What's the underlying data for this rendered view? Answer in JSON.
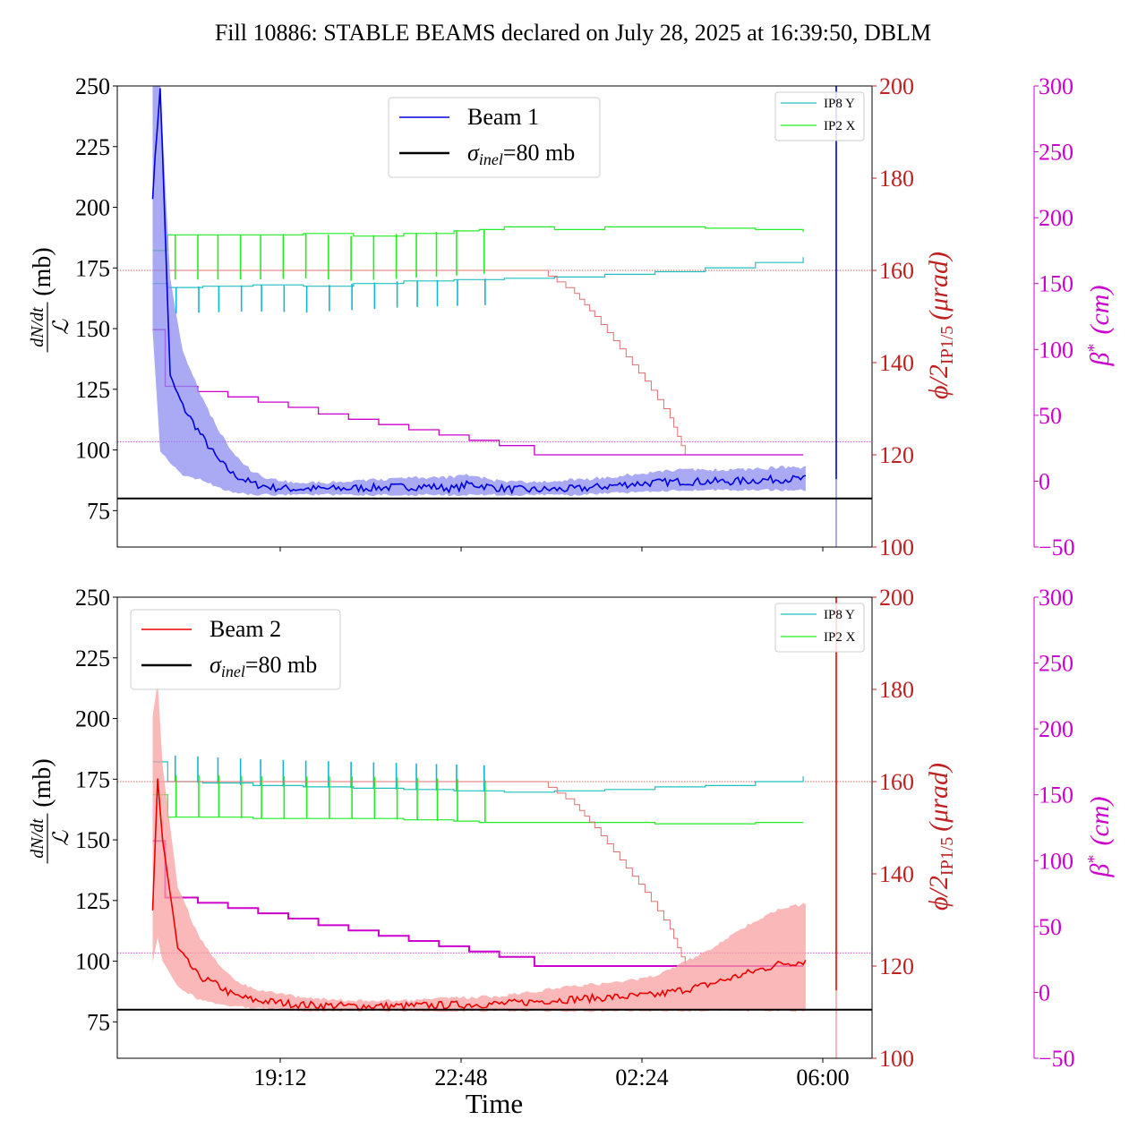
{
  "title": "Fill 10886: STABLE BEAMS declared on July 28, 2025 at 16:39:50, DBLM",
  "xlabel": "Time",
  "xticks": [
    "19:12",
    "22:48",
    "02:24",
    "06:00"
  ],
  "colors": {
    "beam1": "#0000dd",
    "beam1_band": "#8c8cf0",
    "beam2": "#ee0000",
    "beam2_band": "#f8a0a0",
    "ip8y": "#20c0c0",
    "ip2x": "#22ee22",
    "crossing": "#e07070",
    "beta": "#cc00cc",
    "axis_red": "#c02020",
    "axis_magenta": "#cc00cc"
  },
  "left_axis": {
    "label_fraction_top": "dN/dt",
    "label_fraction_bottom": "ℒ",
    "label_unit": "(mb)",
    "range": [
      60,
      250
    ],
    "ticks": [
      "75",
      "100",
      "125",
      "150",
      "175",
      "200",
      "225",
      "250"
    ]
  },
  "right_axis_red": {
    "label": "ϕ/2",
    "label_sub": "IP1/5",
    "label_unit": "(μrad)",
    "range": [
      100,
      200
    ],
    "ticks": [
      "100",
      "120",
      "140",
      "160",
      "180",
      "200"
    ]
  },
  "right_axis_magenta": {
    "label": "β",
    "label_sup": "*",
    "label_unit": "(cm)",
    "range": [
      -50,
      300
    ],
    "ticks": [
      "−50",
      "0",
      "50",
      "100",
      "150",
      "200",
      "250",
      "300"
    ]
  },
  "legend_small": [
    "IP8 Y",
    "IP2 X"
  ],
  "chart_data": [
    {
      "type": "line",
      "panel": "top",
      "legend": [
        {
          "label": "Beam 1",
          "kind": "beam"
        },
        {
          "label_main": "σ",
          "label_sub": "inel",
          "label_rest": "=80 mb",
          "kind": "ref"
        }
      ],
      "x_hours": [
        0.0,
        0.15,
        0.35,
        0.6,
        1.0,
        1.3,
        1.6,
        2.0,
        2.4,
        2.8,
        3.5,
        4.5,
        5.5,
        6.0,
        6.3,
        7.0,
        7.5,
        8.5,
        9.5,
        10.5,
        11.5,
        12.5,
        13.0
      ],
      "beam": [
        205,
        250,
        130,
        118,
        105,
        96,
        90,
        86,
        84.5,
        84,
        84,
        84.5,
        85,
        84,
        86,
        84,
        83.5,
        84,
        86,
        87,
        87,
        88,
        88
      ],
      "band_lo": [
        150,
        100,
        95,
        90,
        88,
        85,
        83,
        82,
        82,
        82,
        82,
        82,
        82,
        82,
        82,
        82,
        82,
        82,
        83,
        84,
        84,
        84,
        84
      ],
      "band_hi": [
        260,
        250,
        170,
        140,
        120,
        108,
        98,
        90,
        87,
        86,
        86,
        87,
        88,
        88,
        89,
        86,
        86,
        87,
        89,
        91,
        91,
        92,
        92
      ],
      "sigma_inel": 80,
      "ip8y_x": [
        0.0,
        0.3,
        1.0,
        2.0,
        3.0,
        4.0,
        5.0,
        6.0,
        7.0,
        8.0,
        9.0,
        10.0,
        11.0,
        12.0,
        12.95
      ],
      "ip8y_um": [
        150,
        147,
        148,
        149,
        148,
        150,
        152,
        153,
        154,
        155,
        157,
        159,
        162,
        166,
        170
      ],
      "ip2x_x": [
        0.0,
        0.3,
        1.0,
        2.0,
        3.0,
        4.0,
        5.0,
        6.0,
        6.5,
        7.0,
        8.0,
        9.0,
        10.0,
        11.0,
        12.0,
        12.95
      ],
      "ip2x_um": [
        175,
        187,
        187,
        187,
        188,
        186,
        188,
        190,
        191,
        193,
        191,
        193,
        193,
        192,
        191,
        189
      ],
      "crossing_x": [
        0.0,
        7.7,
        8.4,
        8.8,
        9.3,
        9.8,
        10.3,
        10.6,
        12.95
      ],
      "crossing_urad": [
        160,
        160,
        155,
        150,
        143,
        136,
        128,
        120,
        120
      ],
      "crossing_ref_urad": 160,
      "beta_x": [
        0.0,
        0.25,
        0.9,
        1.5,
        2.1,
        2.7,
        3.3,
        3.9,
        4.5,
        5.1,
        5.7,
        6.3,
        6.9,
        7.6,
        12.95
      ],
      "beta_cm": [
        115,
        72,
        68,
        64,
        60,
        56,
        51,
        47,
        43,
        39,
        35,
        31,
        27,
        20,
        20
      ],
      "beta_ref_cm": 30
    },
    {
      "type": "line",
      "panel": "bottom",
      "legend": [
        {
          "label": "Beam 2",
          "kind": "beam"
        },
        {
          "label_main": "σ",
          "label_sub": "inel",
          "label_rest": "=80 mb",
          "kind": "ref"
        }
      ],
      "x_hours": [
        0.0,
        0.1,
        0.2,
        0.5,
        0.9,
        1.3,
        1.6,
        2.0,
        2.5,
        3.0,
        4.0,
        5.0,
        6.0,
        7.0,
        8.0,
        9.0,
        10.0,
        10.5,
        11.0,
        11.5,
        12.0,
        12.5,
        13.0
      ],
      "beam": [
        120,
        175,
        150,
        105,
        94,
        90,
        86,
        84,
        83,
        82,
        81.5,
        81.5,
        82,
        82.5,
        84,
        85,
        86,
        88,
        90,
        93,
        96,
        99,
        100
      ],
      "band_lo": [
        100,
        110,
        100,
        90,
        85,
        83,
        82,
        81,
        81,
        80,
        80,
        80,
        80,
        80,
        80,
        80,
        80,
        80,
        80,
        80,
        80,
        80,
        80
      ],
      "band_hi": [
        200,
        215,
        180,
        130,
        110,
        98,
        92,
        88,
        86,
        84,
        83,
        83,
        84,
        85,
        88,
        90,
        93,
        98,
        103,
        110,
        116,
        121,
        123
      ],
      "sigma_inel": 80,
      "ip8y_x": [
        0.0,
        0.3,
        1.0,
        2.0,
        3.0,
        4.0,
        5.0,
        6.0,
        7.0,
        8.0,
        9.0,
        10.0,
        11.0,
        12.0,
        12.95
      ],
      "ip8y_um": [
        175,
        160,
        159,
        157,
        156,
        155,
        154,
        153,
        152,
        153,
        154,
        156,
        157,
        160,
        164
      ],
      "ip2x_x": [
        0.0,
        0.3,
        1.0,
        2.0,
        3.0,
        4.0,
        5.0,
        6.0,
        6.5,
        7.0,
        8.0,
        9.0,
        10.0,
        11.0,
        12.0,
        12.95
      ],
      "ip2x_um": [
        150,
        133,
        133,
        132,
        132,
        132,
        131,
        130,
        129,
        129,
        129,
        129,
        128,
        128,
        129,
        129
      ],
      "crossing_x": [
        0.0,
        7.7,
        8.4,
        8.8,
        9.3,
        9.8,
        10.3,
        10.6,
        12.95
      ],
      "crossing_urad": [
        160,
        160,
        155,
        150,
        143,
        136,
        128,
        120,
        120
      ],
      "crossing_ref_urad": 160,
      "beta_x": [
        0.0,
        0.25,
        0.9,
        1.5,
        2.1,
        2.7,
        3.3,
        3.9,
        4.5,
        5.1,
        5.7,
        6.3,
        6.9,
        7.6,
        12.95
      ],
      "beta_cm": [
        115,
        72,
        68,
        64,
        60,
        56,
        51,
        47,
        43,
        39,
        35,
        31,
        27,
        20,
        20
      ],
      "beta_ref_cm": 30
    }
  ],
  "spike_times_hours": [
    0.45,
    0.9,
    1.3,
    1.75,
    2.15,
    2.6,
    3.05,
    3.5,
    3.95,
    4.4,
    4.85,
    5.25,
    5.65,
    6.05,
    6.6
  ]
}
